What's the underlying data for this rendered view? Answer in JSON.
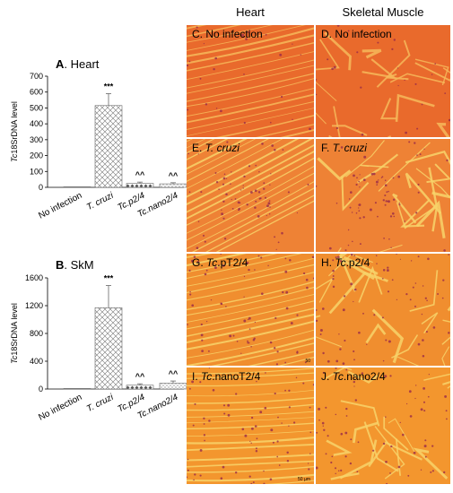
{
  "columns": {
    "heart": "Heart",
    "skeletal": "Skeletal Muscle"
  },
  "chart_data": [
    {
      "type": "bar",
      "panel": "A",
      "title": "Heart",
      "ylabel_prefix": "Tc",
      "ylabel_rest": "18SrDNA level",
      "ylim": [
        0,
        700
      ],
      "yticks": [
        0,
        100,
        200,
        300,
        400,
        500,
        600,
        700
      ],
      "categories": [
        "No infection",
        "T. cruzi",
        "Tc.p2/4",
        "Tc.nano2/4"
      ],
      "categories_italic": [
        false,
        true,
        true,
        true
      ],
      "values": [
        2,
        515,
        25,
        22
      ],
      "errors": [
        0,
        75,
        8,
        7
      ],
      "annotations": [
        "",
        "***",
        "^^",
        "^^"
      ],
      "grid": false
    },
    {
      "type": "bar",
      "panel": "B",
      "title": "SkM",
      "ylabel_prefix": "Tc",
      "ylabel_rest": "18SrDNA level",
      "ylim": [
        0,
        1600
      ],
      "yticks": [
        0,
        400,
        800,
        1200,
        1600
      ],
      "categories": [
        "No infection",
        "T. cruzi",
        "Tc.p2/4",
        "Tc.nano2/4"
      ],
      "categories_italic": [
        false,
        true,
        true,
        true
      ],
      "values": [
        2,
        1170,
        55,
        85
      ],
      "errors": [
        0,
        320,
        20,
        30
      ],
      "annotations": [
        "",
        "***",
        "^^",
        "^^"
      ],
      "grid": false
    }
  ],
  "micrographs": [
    {
      "letter": "C.",
      "pre": "No infection",
      "ital": "",
      "post": "",
      "scale": ""
    },
    {
      "letter": "D.",
      "pre": "No infection",
      "ital": "",
      "post": "",
      "scale": ""
    },
    {
      "letter": "E.",
      "pre": "",
      "ital": "T. cruzi",
      "post": "",
      "scale": ""
    },
    {
      "letter": "F.",
      "pre": "",
      "ital": "T. cruzi",
      "post": "",
      "scale": ""
    },
    {
      "letter": "G.",
      "pre": "",
      "ital": "Tc",
      "post": ".pT2/4",
      "scale": "50"
    },
    {
      "letter": "H.",
      "pre": "",
      "ital": "Tc",
      "post": ".p2/4",
      "scale": ""
    },
    {
      "letter": "I.",
      "pre": "",
      "ital": "Tc",
      "post": ".nanoT2/4",
      "scale": "50 µm"
    },
    {
      "letter": "J.",
      "pre": "",
      "ital": "Tc",
      "post": ".nano2/4",
      "scale": ""
    }
  ]
}
